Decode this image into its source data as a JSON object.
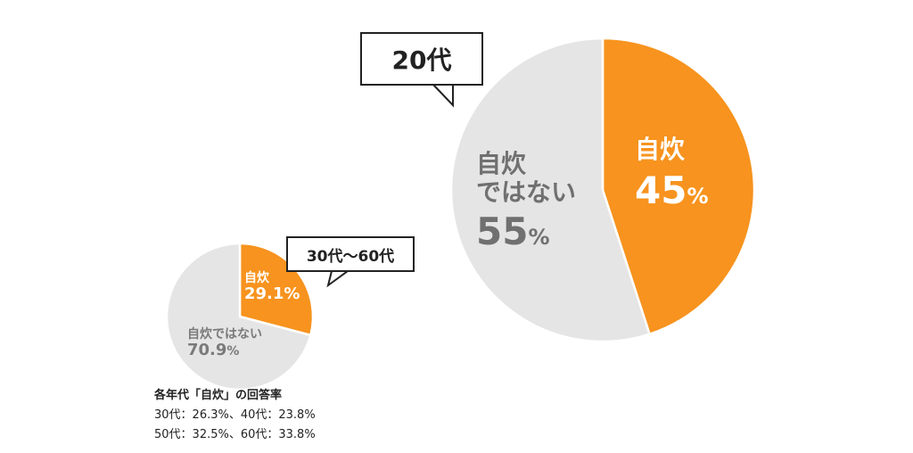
{
  "chart_data": [
    {
      "type": "pie",
      "title": "30代〜60代",
      "slices": [
        {
          "label": "自炊",
          "value": 29.1,
          "value_text": "29.1",
          "unit": "%",
          "color": "#F7931E"
        },
        {
          "label": "自炊ではない",
          "value": 70.9,
          "value_text": "70.9",
          "unit": "%",
          "color": "#E5E5E5"
        }
      ]
    },
    {
      "type": "pie",
      "title": "20代",
      "slices": [
        {
          "label": "自炊",
          "value": 45,
          "value_text": "45",
          "unit": "%",
          "color": "#F7931E"
        },
        {
          "label": "自炊ではない",
          "label_lines": [
            "自炊",
            "ではない"
          ],
          "value": 55,
          "value_text": "55",
          "unit": "%",
          "color": "#E5E5E5"
        }
      ]
    }
  ],
  "note": {
    "heading": "各年代「自炊」の回答率",
    "line1": "30代：26.3%、40代：23.8%",
    "line2": "50代：32.5%、60代：33.8%"
  }
}
